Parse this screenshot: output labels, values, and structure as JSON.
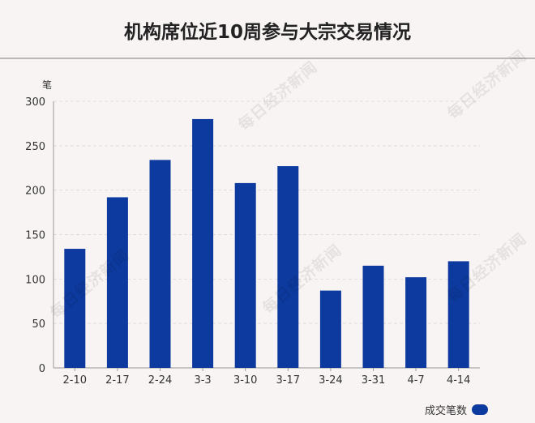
{
  "page": {
    "title": "机构席位近10周参与大宗交易情况",
    "watermark": "每日经济新闻"
  },
  "colors": {
    "bar": "#0d3a9e",
    "axis": "#999999",
    "grid": "#e2dcdc",
    "background": "#f9f4f4"
  },
  "chart_data": {
    "type": "bar",
    "title": "机构席位近10周参与大宗交易情况",
    "ylabel": "笔",
    "xlabel": "",
    "ylim": [
      0,
      300
    ],
    "yticks": [
      0,
      50,
      100,
      150,
      200,
      250,
      300
    ],
    "grid": true,
    "legend": {
      "position": "bottom-right"
    },
    "categories": [
      "2-10",
      "2-17",
      "2-24",
      "3-3",
      "3-10",
      "3-17",
      "3-24",
      "3-31",
      "4-7",
      "4-14"
    ],
    "series": [
      {
        "name": "成交笔数",
        "values": [
          134,
          192,
          234,
          280,
          208,
          227,
          87,
          115,
          102,
          120
        ]
      }
    ]
  }
}
